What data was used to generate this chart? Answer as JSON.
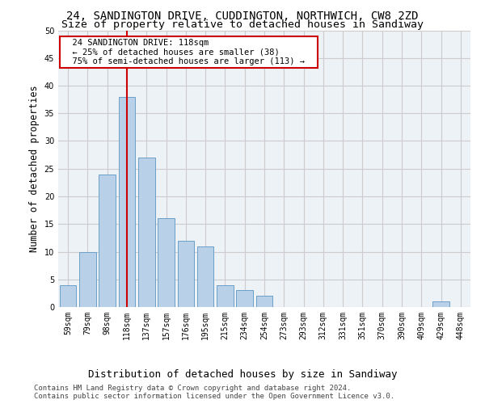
{
  "title": "24, SANDINGTON DRIVE, CUDDINGTON, NORTHWICH, CW8 2ZD",
  "subtitle": "Size of property relative to detached houses in Sandiway",
  "xlabel": "Distribution of detached houses by size in Sandiway",
  "ylabel": "Number of detached properties",
  "categories": [
    "59sqm",
    "79sqm",
    "98sqm",
    "118sqm",
    "137sqm",
    "157sqm",
    "176sqm",
    "195sqm",
    "215sqm",
    "234sqm",
    "254sqm",
    "273sqm",
    "293sqm",
    "312sqm",
    "331sqm",
    "351sqm",
    "370sqm",
    "390sqm",
    "409sqm",
    "429sqm",
    "448sqm"
  ],
  "bar_values": [
    4,
    10,
    24,
    38,
    27,
    16,
    12,
    11,
    4,
    3,
    2,
    0,
    0,
    0,
    0,
    0,
    0,
    0,
    0,
    1,
    0
  ],
  "bar_color": "#b8d0e8",
  "bar_edge_color": "#6a9fc8",
  "vline_x_index": 3,
  "vline_color": "#cc0000",
  "ylim": [
    0,
    50
  ],
  "yticks": [
    0,
    5,
    10,
    15,
    20,
    25,
    30,
    35,
    40,
    45,
    50
  ],
  "annotation_text": "  24 SANDINGTON DRIVE: 118sqm  \n  ← 25% of detached houses are smaller (38)  \n  75% of semi-detached houses are larger (113) →  ",
  "annotation_box_color": "#ffffff",
  "annotation_box_edge": "#cc0000",
  "footer": "Contains HM Land Registry data © Crown copyright and database right 2024.\nContains public sector information licensed under the Open Government Licence v3.0.",
  "grid_color": "#cccccc",
  "bg_color": "#edf2f7",
  "title_fontsize": 10,
  "subtitle_fontsize": 9.5,
  "tick_fontsize": 7,
  "ylabel_fontsize": 8.5,
  "xlabel_fontsize": 9,
  "footer_fontsize": 6.5
}
